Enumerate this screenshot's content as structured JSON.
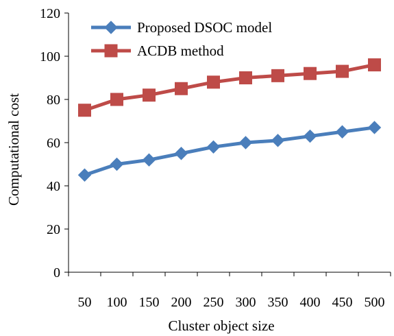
{
  "chart_data": {
    "type": "line",
    "title": "",
    "xlabel": "Cluster object size",
    "ylabel": "Computational cost",
    "categories": [
      "50",
      "100",
      "150",
      "200",
      "250",
      "300",
      "350",
      "400",
      "450",
      "500"
    ],
    "ylim": [
      0,
      120
    ],
    "yticks": [
      "0",
      "20",
      "40",
      "60",
      "80",
      "100",
      "120"
    ],
    "grid": false,
    "legend_position": "top",
    "series": [
      {
        "name": "Proposed DSOC model",
        "values": [
          45,
          50,
          52,
          55,
          58,
          60,
          61,
          63,
          65,
          67
        ],
        "color": "#4a7ebb",
        "marker": "diamond"
      },
      {
        "name": "ACDB method",
        "values": [
          75,
          80,
          82,
          85,
          88,
          90,
          91,
          92,
          93,
          96
        ],
        "color": "#be4b48",
        "marker": "square"
      }
    ]
  }
}
